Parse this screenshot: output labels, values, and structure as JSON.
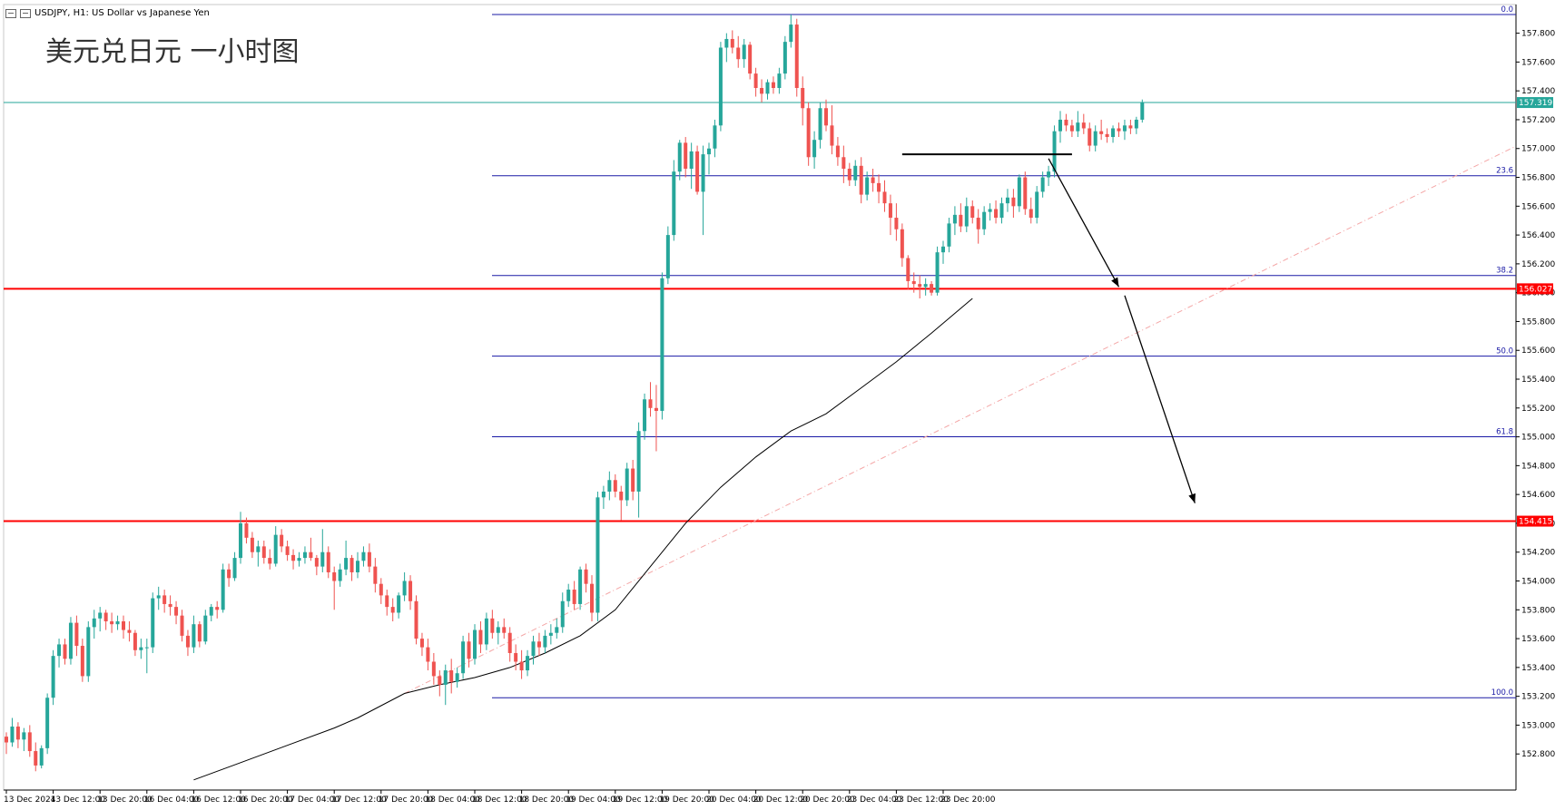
{
  "header": {
    "symbol_text": "USDJPY, H1:  US Dollar vs Japanese Yen"
  },
  "overlay_title": "美元兑日元 一小时图",
  "colors": {
    "bull": "#26a69a",
    "bear": "#ef5350",
    "fib_line": "#1a1aa6",
    "support": "#ff0000",
    "current_price": "#26a69a",
    "ma": "#000000",
    "trend": "#f4a6a6"
  },
  "chart_data": {
    "type": "candlestick",
    "ylim": [
      152.6,
      157.98
    ],
    "y_ticks": [
      "157.800",
      "157.600",
      "157.400",
      "157.200",
      "157.000",
      "156.800",
      "156.600",
      "156.400",
      "156.200",
      "156.000",
      "155.800",
      "155.600",
      "155.400",
      "155.200",
      "155.000",
      "154.800",
      "154.600",
      "154.400",
      "154.200",
      "154.000",
      "153.800",
      "153.600",
      "153.400",
      "153.200",
      "153.000",
      "152.800"
    ],
    "x_ticks": [
      "13 Dec 2024",
      "13 Dec 12:00",
      "13 Dec 20:00",
      "16 Dec 04:00",
      "16 Dec 12:00",
      "16 Dec 20:00",
      "17 Dec 04:00",
      "17 Dec 12:00",
      "17 Dec 20:00",
      "18 Dec 04:00",
      "18 Dec 12:00",
      "18 Dec 20:00",
      "19 Dec 04:00",
      "19 Dec 12:00",
      "19 Dec 20:00",
      "20 Dec 04:00",
      "20 Dec 12:00",
      "20 Dec 20:00",
      "23 Dec 04:00",
      "23 Dec 12:00",
      "23 Dec 20:00"
    ],
    "candles_per_tick": 8,
    "current_price": "157.319",
    "horizontal_levels": [
      {
        "price": 156.027,
        "label": "156.027"
      },
      {
        "price": 154.415,
        "label": "154.415"
      }
    ],
    "fibonacci": {
      "high": 157.93,
      "low": 153.19,
      "levels": [
        {
          "ratio": 0.0,
          "label": "0.0"
        },
        {
          "ratio": 0.236,
          "label": "23.6"
        },
        {
          "ratio": 0.382,
          "label": "38.2"
        },
        {
          "ratio": 0.5,
          "label": "50.0"
        },
        {
          "ratio": 0.618,
          "label": "61.8"
        },
        {
          "ratio": 1.0,
          "label": "100.0"
        }
      ]
    },
    "candles": [
      [
        152.92,
        152.95,
        152.8,
        152.88
      ],
      [
        152.88,
        153.05,
        152.85,
        152.99
      ],
      [
        152.99,
        153.02,
        152.84,
        152.9
      ],
      [
        152.9,
        152.98,
        152.82,
        152.95
      ],
      [
        152.95,
        153.0,
        152.78,
        152.82
      ],
      [
        152.82,
        152.88,
        152.68,
        152.72
      ],
      [
        152.72,
        152.86,
        152.7,
        152.84
      ],
      [
        152.84,
        153.22,
        152.8,
        153.19
      ],
      [
        153.19,
        153.52,
        153.14,
        153.48
      ],
      [
        153.48,
        153.6,
        153.4,
        153.56
      ],
      [
        153.56,
        153.6,
        153.42,
        153.46
      ],
      [
        153.46,
        153.75,
        153.42,
        153.71
      ],
      [
        153.71,
        153.76,
        153.48,
        153.55
      ],
      [
        153.55,
        153.6,
        153.3,
        153.34
      ],
      [
        153.34,
        153.72,
        153.3,
        153.68
      ],
      [
        153.68,
        153.8,
        153.6,
        153.74
      ],
      [
        153.74,
        153.82,
        153.65,
        153.78
      ],
      [
        153.78,
        153.8,
        153.66,
        153.72
      ],
      [
        153.72,
        153.78,
        153.64,
        153.7
      ],
      [
        153.7,
        153.76,
        153.66,
        153.72
      ],
      [
        153.72,
        153.76,
        153.6,
        153.66
      ],
      [
        153.66,
        153.72,
        153.58,
        153.64
      ],
      [
        153.64,
        153.66,
        153.48,
        153.52
      ],
      [
        153.52,
        153.6,
        153.46,
        153.54
      ],
      [
        153.54,
        153.6,
        153.36,
        153.54
      ],
      [
        153.54,
        153.92,
        153.5,
        153.88
      ],
      [
        153.88,
        153.96,
        153.8,
        153.9
      ],
      [
        153.9,
        153.94,
        153.78,
        153.84
      ],
      [
        153.84,
        153.9,
        153.76,
        153.82
      ],
      [
        153.82,
        153.86,
        153.7,
        153.76
      ],
      [
        153.76,
        153.8,
        153.58,
        153.62
      ],
      [
        153.62,
        153.66,
        153.48,
        153.54
      ],
      [
        153.54,
        153.76,
        153.5,
        153.7
      ],
      [
        153.7,
        153.72,
        153.54,
        153.58
      ],
      [
        153.58,
        153.8,
        153.56,
        153.76
      ],
      [
        153.76,
        153.84,
        153.72,
        153.82
      ],
      [
        153.82,
        153.86,
        153.74,
        153.8
      ],
      [
        153.8,
        154.12,
        153.78,
        154.08
      ],
      [
        154.08,
        154.12,
        153.96,
        154.02
      ],
      [
        154.02,
        154.2,
        154.0,
        154.16
      ],
      [
        154.16,
        154.48,
        154.12,
        154.4
      ],
      [
        154.4,
        154.44,
        154.26,
        154.3
      ],
      [
        154.3,
        154.34,
        154.16,
        154.2
      ],
      [
        154.2,
        154.28,
        154.1,
        154.24
      ],
      [
        154.24,
        154.28,
        154.12,
        154.16
      ],
      [
        154.16,
        154.22,
        154.08,
        154.12
      ],
      [
        154.12,
        154.38,
        154.1,
        154.32
      ],
      [
        154.32,
        154.36,
        154.2,
        154.24
      ],
      [
        154.24,
        154.28,
        154.14,
        154.18
      ],
      [
        154.18,
        154.22,
        154.08,
        154.14
      ],
      [
        154.14,
        154.2,
        154.1,
        154.16
      ],
      [
        154.16,
        154.24,
        154.12,
        154.2
      ],
      [
        154.2,
        154.3,
        154.14,
        154.16
      ],
      [
        154.16,
        154.18,
        154.04,
        154.1
      ],
      [
        154.1,
        154.36,
        154.06,
        154.2
      ],
      [
        154.2,
        154.24,
        154.02,
        154.06
      ],
      [
        154.06,
        154.1,
        153.8,
        154.0
      ],
      [
        154.0,
        154.12,
        153.96,
        154.08
      ],
      [
        154.08,
        154.28,
        154.04,
        154.16
      ],
      [
        154.16,
        154.18,
        154.0,
        154.06
      ],
      [
        154.06,
        154.2,
        154.02,
        154.14
      ],
      [
        154.14,
        154.24,
        154.1,
        154.2
      ],
      [
        154.2,
        154.26,
        154.06,
        154.1
      ],
      [
        154.1,
        154.16,
        153.92,
        153.98
      ],
      [
        153.98,
        154.02,
        153.84,
        153.9
      ],
      [
        153.9,
        153.94,
        153.76,
        153.82
      ],
      [
        153.82,
        153.88,
        153.72,
        153.78
      ],
      [
        153.78,
        153.92,
        153.74,
        153.9
      ],
      [
        153.9,
        154.06,
        153.86,
        154.0
      ],
      [
        154.0,
        154.04,
        153.8,
        153.86
      ],
      [
        153.86,
        153.9,
        153.56,
        153.6
      ],
      [
        153.6,
        153.64,
        153.48,
        153.54
      ],
      [
        153.54,
        153.6,
        153.38,
        153.44
      ],
      [
        153.44,
        153.5,
        153.28,
        153.34
      ],
      [
        153.34,
        153.38,
        153.2,
        153.28
      ],
      [
        153.28,
        153.42,
        153.14,
        153.38
      ],
      [
        153.38,
        153.46,
        153.22,
        153.3
      ],
      [
        153.3,
        153.4,
        153.26,
        153.36
      ],
      [
        153.36,
        153.62,
        153.32,
        153.58
      ],
      [
        153.58,
        153.64,
        153.4,
        153.46
      ],
      [
        153.46,
        153.7,
        153.42,
        153.66
      ],
      [
        153.66,
        153.72,
        153.5,
        153.56
      ],
      [
        153.56,
        153.78,
        153.52,
        153.74
      ],
      [
        153.74,
        153.8,
        153.6,
        153.64
      ],
      [
        153.64,
        153.72,
        153.56,
        153.68
      ],
      [
        153.68,
        153.74,
        153.6,
        153.64
      ],
      [
        153.64,
        153.68,
        153.44,
        153.5
      ],
      [
        153.5,
        153.56,
        153.38,
        153.44
      ],
      [
        153.44,
        153.52,
        153.32,
        153.38
      ],
      [
        153.38,
        153.52,
        153.34,
        153.48
      ],
      [
        153.48,
        153.62,
        153.42,
        153.58
      ],
      [
        153.58,
        153.64,
        153.48,
        153.54
      ],
      [
        153.54,
        153.66,
        153.5,
        153.62
      ],
      [
        153.62,
        153.7,
        153.56,
        153.64
      ],
      [
        153.64,
        153.74,
        153.6,
        153.68
      ],
      [
        153.68,
        153.92,
        153.64,
        153.86
      ],
      [
        153.86,
        153.98,
        153.82,
        153.94
      ],
      [
        153.94,
        154.0,
        153.8,
        153.84
      ],
      [
        153.84,
        154.1,
        153.8,
        154.08
      ],
      [
        154.08,
        154.12,
        153.92,
        153.98
      ],
      [
        153.98,
        154.04,
        153.72,
        153.78
      ],
      [
        153.78,
        154.62,
        153.72,
        154.58
      ],
      [
        154.58,
        154.66,
        154.5,
        154.62
      ],
      [
        154.62,
        154.76,
        154.56,
        154.7
      ],
      [
        154.7,
        154.74,
        154.58,
        154.62
      ],
      [
        154.62,
        154.66,
        154.42,
        154.56
      ],
      [
        154.56,
        154.82,
        154.52,
        154.78
      ],
      [
        154.78,
        154.84,
        154.56,
        154.62
      ],
      [
        154.62,
        155.1,
        154.44,
        155.04
      ],
      [
        155.04,
        155.3,
        154.98,
        155.26
      ],
      [
        155.26,
        155.38,
        155.14,
        155.2
      ],
      [
        155.2,
        155.36,
        154.9,
        155.18
      ],
      [
        155.18,
        156.14,
        155.12,
        156.1
      ],
      [
        156.1,
        156.46,
        156.06,
        156.4
      ],
      [
        156.4,
        156.92,
        156.36,
        156.84
      ],
      [
        156.84,
        157.06,
        156.78,
        157.04
      ],
      [
        157.04,
        157.08,
        156.8,
        156.86
      ],
      [
        156.86,
        157.04,
        156.72,
        156.98
      ],
      [
        156.98,
        157.02,
        156.68,
        156.7
      ],
      [
        156.7,
        157.02,
        156.4,
        156.96
      ],
      [
        156.96,
        157.04,
        156.82,
        157.0
      ],
      [
        157.0,
        157.2,
        156.94,
        157.16
      ],
      [
        157.16,
        157.74,
        157.12,
        157.7
      ],
      [
        157.7,
        157.8,
        157.6,
        157.76
      ],
      [
        157.76,
        157.82,
        157.66,
        157.7
      ],
      [
        157.7,
        157.78,
        157.56,
        157.62
      ],
      [
        157.62,
        157.76,
        157.56,
        157.72
      ],
      [
        157.72,
        157.74,
        157.48,
        157.52
      ],
      [
        157.52,
        157.56,
        157.36,
        157.42
      ],
      [
        157.42,
        157.48,
        157.32,
        157.38
      ],
      [
        157.38,
        157.48,
        157.34,
        157.46
      ],
      [
        157.46,
        157.5,
        157.38,
        157.42
      ],
      [
        157.42,
        157.56,
        157.38,
        157.52
      ],
      [
        157.52,
        157.78,
        157.48,
        157.74
      ],
      [
        157.74,
        157.93,
        157.7,
        157.86
      ],
      [
        157.86,
        157.9,
        157.36,
        157.42
      ],
      [
        157.42,
        157.5,
        157.16,
        157.28
      ],
      [
        157.28,
        157.32,
        156.88,
        156.94
      ],
      [
        156.94,
        157.12,
        156.86,
        157.06
      ],
      [
        157.06,
        157.32,
        157.0,
        157.28
      ],
      [
        157.28,
        157.34,
        157.12,
        157.16
      ],
      [
        157.16,
        157.3,
        156.96,
        157.02
      ],
      [
        157.02,
        157.08,
        156.88,
        156.94
      ],
      [
        156.94,
        157.02,
        156.76,
        156.86
      ],
      [
        156.86,
        156.9,
        156.74,
        156.78
      ],
      [
        156.78,
        156.92,
        156.74,
        156.88
      ],
      [
        156.88,
        156.94,
        156.62,
        156.68
      ],
      [
        156.68,
        156.84,
        156.64,
        156.8
      ],
      [
        156.8,
        156.86,
        156.7,
        156.76
      ],
      [
        156.76,
        156.82,
        156.62,
        156.7
      ],
      [
        156.7,
        156.78,
        156.56,
        156.62
      ],
      [
        156.62,
        156.68,
        156.4,
        156.52
      ],
      [
        156.52,
        156.62,
        156.36,
        156.44
      ],
      [
        156.44,
        156.48,
        156.18,
        156.24
      ],
      [
        156.24,
        156.26,
        156.02,
        156.08
      ],
      [
        156.08,
        156.14,
        156.0,
        156.06
      ],
      [
        156.06,
        156.12,
        155.96,
        156.04
      ],
      [
        156.04,
        156.1,
        155.98,
        156.06
      ],
      [
        156.06,
        156.08,
        155.98,
        156.0
      ],
      [
        156.0,
        156.32,
        155.98,
        156.28
      ],
      [
        156.28,
        156.36,
        156.2,
        156.32
      ],
      [
        156.32,
        156.52,
        156.28,
        156.48
      ],
      [
        156.48,
        156.6,
        156.4,
        156.54
      ],
      [
        156.54,
        156.62,
        156.42,
        156.46
      ],
      [
        156.46,
        156.66,
        156.42,
        156.6
      ],
      [
        156.6,
        156.64,
        156.48,
        156.52
      ],
      [
        156.52,
        156.58,
        156.34,
        156.44
      ],
      [
        156.44,
        156.6,
        156.4,
        156.56
      ],
      [
        156.56,
        156.62,
        156.5,
        156.58
      ],
      [
        156.58,
        156.64,
        156.48,
        156.52
      ],
      [
        156.52,
        156.66,
        156.48,
        156.62
      ],
      [
        156.62,
        156.72,
        156.56,
        156.66
      ],
      [
        156.66,
        156.72,
        156.52,
        156.6
      ],
      [
        156.6,
        156.82,
        156.56,
        156.8
      ],
      [
        156.8,
        156.84,
        156.54,
        156.58
      ],
      [
        156.58,
        156.66,
        156.48,
        156.52
      ],
      [
        156.52,
        156.74,
        156.48,
        156.7
      ],
      [
        156.7,
        156.84,
        156.66,
        156.8
      ],
      [
        156.8,
        156.88,
        156.74,
        156.84
      ],
      [
        156.84,
        157.16,
        156.8,
        157.12
      ],
      [
        157.12,
        157.26,
        157.04,
        157.2
      ],
      [
        157.2,
        157.24,
        157.12,
        157.16
      ],
      [
        157.16,
        157.2,
        157.08,
        157.12
      ],
      [
        157.12,
        157.26,
        157.08,
        157.18
      ],
      [
        157.18,
        157.24,
        157.1,
        157.14
      ],
      [
        157.14,
        157.18,
        156.98,
        157.02
      ],
      [
        157.02,
        157.16,
        156.98,
        157.12
      ],
      [
        157.12,
        157.2,
        157.06,
        157.1
      ],
      [
        157.1,
        157.14,
        157.04,
        157.08
      ],
      [
        157.08,
        157.16,
        157.04,
        157.14
      ],
      [
        157.14,
        157.18,
        157.08,
        157.12
      ],
      [
        157.12,
        157.2,
        157.06,
        157.16
      ],
      [
        157.16,
        157.2,
        157.1,
        157.14
      ],
      [
        157.14,
        157.22,
        157.1,
        157.2
      ],
      [
        157.2,
        157.34,
        157.18,
        157.32
      ]
    ],
    "moving_average": [
      [
        32,
        152.62
      ],
      [
        40,
        152.74
      ],
      [
        48,
        152.86
      ],
      [
        56,
        152.98
      ],
      [
        60,
        153.05
      ],
      [
        68,
        153.22
      ],
      [
        74,
        153.28
      ],
      [
        80,
        153.33
      ],
      [
        86,
        153.4
      ],
      [
        92,
        153.5
      ],
      [
        98,
        153.62
      ],
      [
        104,
        153.8
      ],
      [
        110,
        154.1
      ],
      [
        116,
        154.4
      ],
      [
        122,
        154.65
      ],
      [
        128,
        154.86
      ],
      [
        134,
        155.04
      ],
      [
        140,
        155.16
      ],
      [
        146,
        155.34
      ],
      [
        152,
        155.52
      ],
      [
        158,
        155.72
      ],
      [
        165,
        155.96
      ]
    ],
    "trendline": {
      "from": [
        68,
        153.22
      ],
      "to": [
        208,
        156.02
      ]
    },
    "black_segment": {
      "from": [
        153,
        156.96
      ],
      "to": [
        182,
        156.96
      ]
    },
    "arrows": [
      {
        "from": [
          178,
          156.93
        ],
        "to": [
          190,
          156.04
        ]
      },
      {
        "from": [
          191,
          155.98
        ],
        "to": [
          203,
          154.54
        ]
      }
    ]
  }
}
